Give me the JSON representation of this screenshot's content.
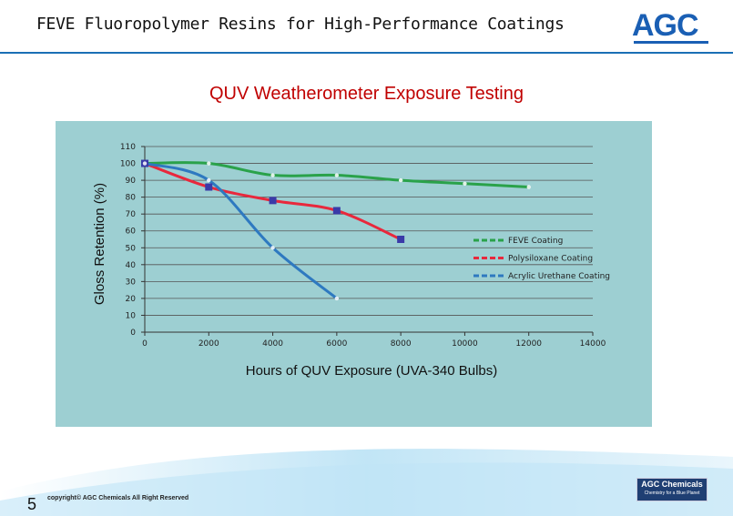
{
  "header": {
    "title": "FEVE Fluoropolymer Resins for High-Performance Coatings",
    "logo": "AGC"
  },
  "footer": {
    "slide_number": "5",
    "copyright": "copyright© AGC Chemicals All Right Reserved",
    "badge_main": "AGC Chemicals",
    "badge_sub": "Chemistry for a Blue Planet"
  },
  "colors": {
    "title_red": "#c00000",
    "plot_bg": "#9dcfd2",
    "brand_blue": "#1a5fb4",
    "feve": "#2aa24a",
    "polysiloxane": "#e8283c",
    "acrylic": "#2e79c0",
    "marker": "#3a3aa8"
  },
  "chart_data": {
    "type": "line",
    "title": "QUV Weatherometer Exposure Testing",
    "xlabel": "Hours of QUV Exposure  (UVA-340 Bulbs)",
    "ylabel": "Gloss Retention (%)",
    "xlim": [
      0,
      14000
    ],
    "ylim": [
      0,
      110
    ],
    "x_ticks": [
      "0",
      "2000",
      "4000",
      "6000",
      "8000",
      "10000",
      "12000",
      "14000"
    ],
    "y_ticks": [
      "0",
      "10",
      "20",
      "30",
      "40",
      "50",
      "60",
      "70",
      "80",
      "90",
      "100",
      "110"
    ],
    "grid": true,
    "legend_position": "right",
    "series": [
      {
        "name": "FEVE  Coating",
        "color": "#2aa24a",
        "x": [
          0,
          2000,
          4000,
          6000,
          8000,
          10000,
          12000
        ],
        "y": [
          100,
          100,
          93,
          93,
          90,
          88,
          86
        ],
        "markers": false
      },
      {
        "name": "Polysiloxane Coating",
        "color": "#e8283c",
        "x": [
          0,
          2000,
          4000,
          6000,
          8000
        ],
        "y": [
          100,
          86,
          78,
          72,
          55
        ],
        "markers": true
      },
      {
        "name": "Acrylic Urethane Coating",
        "color": "#2e79c0",
        "x": [
          0,
          2000,
          4000,
          6000
        ],
        "y": [
          100,
          90,
          50,
          20
        ],
        "markers": false
      }
    ]
  }
}
